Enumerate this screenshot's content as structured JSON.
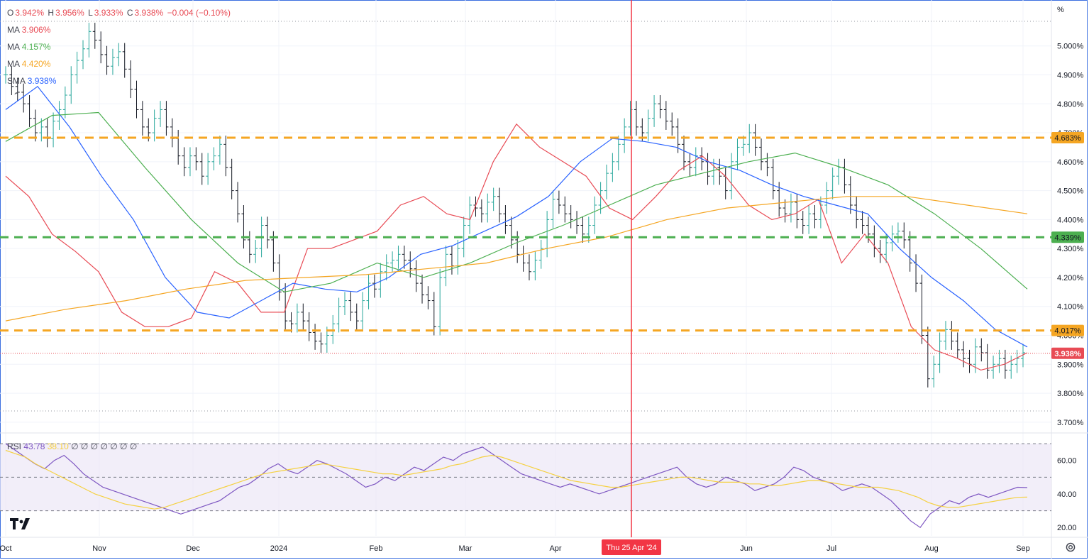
{
  "header": {
    "ohlc": [
      {
        "label": "O",
        "value": "3.942%"
      },
      {
        "label": "H",
        "value": "3.956%"
      },
      {
        "label": "L",
        "value": "3.933%"
      },
      {
        "label": "C",
        "value": "3.938%"
      }
    ],
    "change": "−0.004 (−0.10%)",
    "indicators": [
      {
        "name": "MA",
        "value": "3.906%",
        "color": "#e84b55"
      },
      {
        "name": "MA",
        "value": "4.157%",
        "color": "#4caf50"
      },
      {
        "name": "MA",
        "value": "4.420%",
        "color": "#f5a623"
      },
      {
        "name": "SMA",
        "value": "3.938%",
        "color": "#2962ff"
      }
    ],
    "collapse_icon": "chevron-up-icon",
    "unit": "%"
  },
  "rsi_legend": {
    "name": "RSI",
    "value": "43.78",
    "ma_value": "38.10",
    "extra": "∅ ∅ ∅ ∅ ∅ ∅ ∅",
    "line_color": "#7e57c2",
    "ma_color": "#f5d142"
  },
  "crosshair_label": "Thu 25 Apr '24",
  "chart_data": {
    "type": "line",
    "title": "",
    "x_ticks": [
      "Oct",
      "Nov",
      "Dec",
      "2024",
      "Feb",
      "Mar",
      "Apr",
      "Jun",
      "Jul",
      "Aug",
      "Sep"
    ],
    "y_ticks": [
      "5.000%",
      "4.900%",
      "4.800%",
      "4.700%",
      "4.600%",
      "4.500%",
      "4.400%",
      "4.300%",
      "4.200%",
      "4.100%",
      "4.000%",
      "3.900%",
      "3.800%",
      "3.700%"
    ],
    "ylim": [
      3.68,
      5.09
    ],
    "horizontal_levels": [
      {
        "value": 4.683,
        "label": "4.683%",
        "color": "#f5a623"
      },
      {
        "value": 4.339,
        "label": "4.339%",
        "color": "#4caf50"
      },
      {
        "value": 4.017,
        "label": "4.017%",
        "color": "#f5a623"
      }
    ],
    "last_price": {
      "value": 3.938,
      "label": "3.938%",
      "color": "#e84b55"
    },
    "series": [
      {
        "values": [
          4.55,
          4.48,
          4.35,
          4.29,
          4.22,
          4.08,
          4.03,
          4.03,
          4.06,
          4.22,
          4.18,
          4.08,
          4.08,
          4.3,
          4.3,
          4.33,
          4.36,
          4.45,
          4.48,
          4.42,
          4.4,
          4.6,
          4.73,
          4.65,
          4.6,
          4.55,
          4.44,
          4.4,
          4.48,
          4.57,
          4.62,
          4.55,
          4.45,
          4.4,
          4.42,
          4.47,
          4.25,
          4.35,
          4.25,
          4.03,
          3.95,
          3.92,
          3.88,
          3.9,
          3.94
        ]
      },
      {
        "values": [
          4.78,
          4.86,
          4.72,
          4.55,
          4.4,
          4.2,
          4.08,
          4.06,
          4.12,
          4.18,
          4.16,
          4.15,
          4.2,
          4.28,
          4.31,
          4.36,
          4.41,
          4.48,
          4.6,
          4.68,
          4.67,
          4.65,
          4.6,
          4.57,
          4.52,
          4.48,
          4.45,
          4.42,
          4.3,
          4.2,
          4.12,
          4.02,
          3.96
        ]
      },
      {
        "values": [
          4.67,
          4.76,
          4.77,
          4.58,
          4.4,
          4.25,
          4.15,
          4.18,
          4.25,
          4.2,
          4.25,
          4.32,
          4.38,
          4.45,
          4.52,
          4.56,
          4.6,
          4.63,
          4.58,
          4.52,
          4.42,
          4.3,
          4.16
        ]
      },
      {
        "values": [
          4.05,
          4.09,
          4.12,
          4.16,
          4.19,
          4.2,
          4.21,
          4.23,
          4.25,
          4.3,
          4.34,
          4.4,
          4.44,
          4.46,
          4.48,
          4.48,
          4.45,
          4.42
        ]
      }
    ],
    "price_series_y": [
      4.9,
      4.86,
      4.84,
      4.8,
      4.75,
      4.7,
      4.72,
      4.68,
      4.74,
      4.78,
      4.83,
      4.9,
      4.95,
      4.99,
      5.05,
      5.02,
      4.97,
      4.93,
      4.96,
      4.98,
      4.92,
      4.85,
      4.78,
      4.72,
      4.7,
      4.75,
      4.78,
      4.72,
      4.68,
      4.62,
      4.58,
      4.62,
      4.6,
      4.55,
      4.6,
      4.62,
      4.66,
      4.58,
      4.5,
      4.42,
      4.33,
      4.28,
      4.3,
      4.38,
      4.33,
      4.25,
      4.15,
      4.05,
      4.04,
      4.08,
      4.05,
      4.01,
      3.98,
      3.97,
      4.0,
      4.04,
      4.1,
      4.12,
      4.08,
      4.05,
      4.12,
      4.18,
      4.16,
      4.22,
      4.25,
      4.26,
      4.28,
      4.26,
      4.23,
      4.18,
      4.14,
      4.12,
      4.03,
      4.2,
      4.28,
      4.24,
      4.3,
      4.38,
      4.45,
      4.44,
      4.42,
      4.46,
      4.48,
      4.42,
      4.38,
      4.33,
      4.28,
      4.25,
      4.22,
      4.26,
      4.3,
      4.4,
      4.47,
      4.45,
      4.42,
      4.4,
      4.38,
      4.35,
      4.38,
      4.45,
      4.5,
      4.56,
      4.6,
      4.66,
      4.72,
      4.78,
      4.72,
      4.7,
      4.75,
      4.8,
      4.78,
      4.74,
      4.72,
      4.66,
      4.6,
      4.58,
      4.62,
      4.6,
      4.55,
      4.58,
      4.55,
      4.5,
      4.6,
      4.65,
      4.66,
      4.7,
      4.65,
      4.6,
      4.58,
      4.5,
      4.44,
      4.42,
      4.46,
      4.4,
      4.38,
      4.42,
      4.4,
      4.45,
      4.5,
      4.55,
      4.58,
      4.52,
      4.45,
      4.4,
      4.38,
      4.35,
      4.3,
      4.28,
      4.32,
      4.35,
      4.36,
      4.33,
      4.25,
      4.18,
      4.0,
      3.85,
      3.9,
      3.98,
      4.02,
      3.98,
      3.95,
      3.92,
      3.9,
      3.96,
      3.94,
      3.88,
      3.9,
      3.92,
      3.88,
      3.9,
      3.92,
      3.94
    ]
  },
  "rsi_data": {
    "ylim": [
      15,
      73
    ],
    "y_ticks": [
      "60.00",
      "40.00",
      "20.00"
    ],
    "bands": [
      70,
      50,
      30
    ],
    "values": [
      70,
      66,
      62,
      58,
      55,
      60,
      63,
      58,
      52,
      48,
      44,
      42,
      40,
      38,
      36,
      34,
      32,
      30,
      28,
      30,
      32,
      34,
      36,
      40,
      44,
      46,
      50,
      55,
      58,
      54,
      52,
      56,
      60,
      58,
      55,
      52,
      48,
      44,
      46,
      50,
      48,
      52,
      56,
      54,
      58,
      62,
      60,
      64,
      66,
      68,
      64,
      60,
      56,
      52,
      50,
      48,
      46,
      44,
      46,
      44,
      42,
      40,
      42,
      44,
      46,
      48,
      50,
      52,
      54,
      56,
      50,
      46,
      44,
      46,
      50,
      48,
      46,
      42,
      44,
      46,
      50,
      56,
      54,
      50,
      48,
      46,
      42,
      44,
      46,
      44,
      40,
      36,
      30,
      24,
      20,
      28,
      32,
      36,
      34,
      38,
      40,
      38,
      40,
      42,
      44,
      43.78
    ],
    "ma_values": [
      66,
      64,
      62,
      58,
      55,
      52,
      49,
      46,
      43,
      40,
      38,
      36,
      34,
      33,
      32,
      31,
      32,
      34,
      36,
      38,
      40,
      42,
      44,
      46,
      48,
      50,
      52,
      53,
      54,
      55,
      56,
      57,
      58,
      57,
      56,
      55,
      54,
      53,
      52,
      52,
      51,
      52,
      53,
      54,
      55,
      57,
      58,
      60,
      62,
      63,
      62,
      60,
      58,
      56,
      54,
      52,
      50,
      48,
      47,
      46,
      45,
      44,
      44,
      45,
      46,
      47,
      48,
      49,
      50,
      50,
      49,
      48,
      47,
      47,
      47,
      46,
      46,
      45,
      45,
      46,
      47,
      48,
      48,
      47,
      46,
      45,
      44,
      44,
      44,
      43,
      42,
      40,
      38,
      35,
      33,
      32,
      32,
      33,
      34,
      35,
      36,
      37,
      38,
      38.1
    ]
  }
}
